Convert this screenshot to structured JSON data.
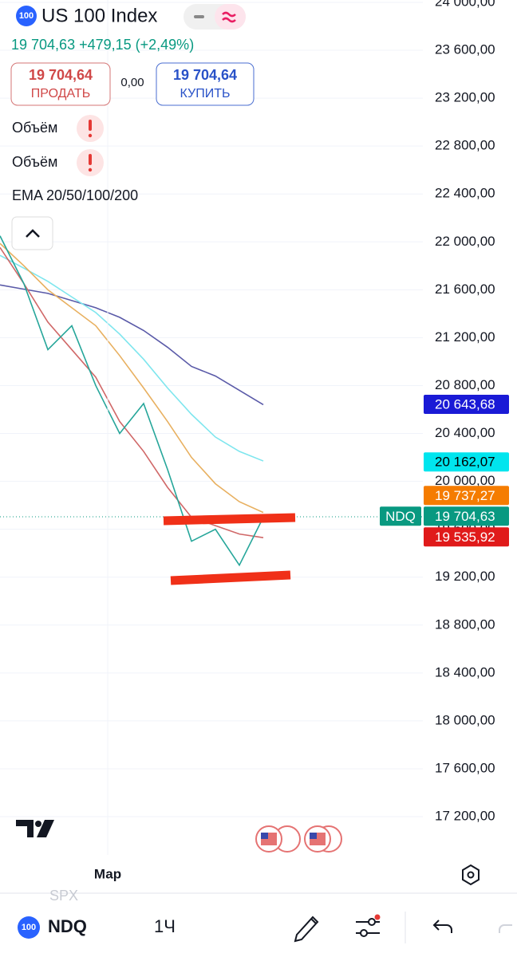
{
  "header": {
    "badge": "100",
    "title": "US 100 Index",
    "quote": "19 704,63  +479,15 (+2,49%)"
  },
  "sell": {
    "price": "19 704,64",
    "label": "ПРОДАТЬ"
  },
  "spread": "0,00",
  "buy": {
    "price": "19 704,64",
    "label": "КУПИТЬ"
  },
  "indicators": [
    "Объём",
    "Объём",
    "EMA 20/50/100/200"
  ],
  "chart_data": {
    "type": "line",
    "x": [
      0,
      30,
      60,
      90,
      120,
      150,
      180,
      210,
      240,
      270,
      300,
      330
    ],
    "xlim": [
      0,
      530
    ],
    "x_axis_label": "Мар",
    "ylim": [
      16887,
      24020
    ],
    "yticks": [
      {
        "value": 24000,
        "label": "24 000,00"
      },
      {
        "value": 23600,
        "label": "23 600,00"
      },
      {
        "value": 23200,
        "label": "23 200,00"
      },
      {
        "value": 22800,
        "label": "22 800,00"
      },
      {
        "value": 22400,
        "label": "22 400,00"
      },
      {
        "value": 22000,
        "label": "22 000,00"
      },
      {
        "value": 21600,
        "label": "21 600,00"
      },
      {
        "value": 21200,
        "label": "21 200,00"
      },
      {
        "value": 20800,
        "label": "20 800,00"
      },
      {
        "value": 20400,
        "label": "20 400,00"
      },
      {
        "value": 20000,
        "label": "20 000,00"
      },
      {
        "value": 19600,
        "label": "19 600,00"
      },
      {
        "value": 19200,
        "label": "19 200,00"
      },
      {
        "value": 18800,
        "label": "18 800,00"
      },
      {
        "value": 18400,
        "label": "18 400,00"
      },
      {
        "value": 18000,
        "label": "18 000,00"
      },
      {
        "value": 17600,
        "label": "17 600,00"
      },
      {
        "value": 17200,
        "label": "17 200,00"
      }
    ],
    "grid": true,
    "series": [
      {
        "color": "#5a5aa8",
        "values": [
          21640,
          21605,
          21570,
          21510,
          21450,
          21370,
          21260,
          21120,
          20960,
          20880,
          20760,
          20640
        ]
      },
      {
        "color": "#7ee6ee",
        "values": [
          21887,
          21780,
          21670,
          21540,
          21410,
          21230,
          21020,
          20780,
          20560,
          20370,
          20250,
          20170
        ]
      },
      {
        "color": "#e8b060",
        "values": [
          21987,
          21800,
          21600,
          21450,
          21300,
          21050,
          20780,
          20500,
          20200,
          19980,
          19830,
          19740
        ]
      },
      {
        "color": "#d06868",
        "values": [
          21953,
          21650,
          21330,
          21100,
          20870,
          20500,
          20250,
          19950,
          19700,
          19630,
          19560,
          19530
        ]
      },
      {
        "color": "#26a69a",
        "values": [
          22050,
          21650,
          21100,
          21300,
          20800,
          20400,
          20650,
          20100,
          19500,
          19600,
          19300,
          19700
        ]
      }
    ],
    "last_price": 19704.63,
    "price_tags": [
      {
        "value": 20643.68,
        "label": "20 643,68",
        "color": "#1a1ad6",
        "text_color": "#ffffff"
      },
      {
        "value": 20162.07,
        "label": "20 162,07",
        "color": "#00e5ee",
        "text_color": "#000000"
      },
      {
        "value": 19737.27,
        "label": "19 737,27",
        "color": "#f57c00",
        "text_color": "#ffffff"
      },
      {
        "value": 19704.63,
        "label": "19 704,63",
        "color": "#089981",
        "text_color": "#ffffff",
        "symbol": "NDQ"
      },
      {
        "value": 19535.92,
        "label": "19 535,92",
        "color": "#e01a1a",
        "text_color": "#ffffff"
      }
    ]
  },
  "toolbar": {
    "badge": "100",
    "symbol": "NDQ",
    "interval": "1Ч",
    "ghost_symbol": "SPX"
  }
}
